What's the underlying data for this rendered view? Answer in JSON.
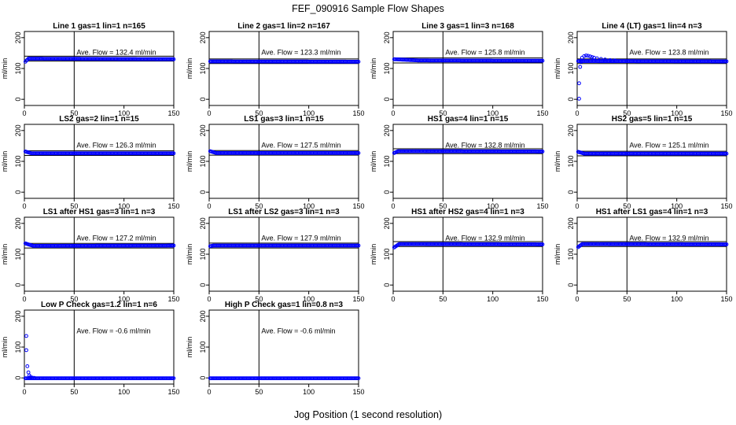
{
  "title": "FEF_090916  Sample Flow Shapes",
  "xlabel": "Jog Position (1 second resolution)",
  "colors": {
    "points": "#0000ff",
    "axes": "#000000"
  },
  "chart_data": [
    {
      "type": "scatter",
      "title": "Line 1 gas=1 lin=1 n=165",
      "ylabel": "ml/min",
      "annotation": "Ave. Flow =  132.4  ml/min",
      "xlim": [
        0,
        150
      ],
      "ylim": [
        -20,
        220
      ],
      "xticks": [
        0,
        50,
        100,
        150
      ],
      "yticks": [
        0,
        100,
        200
      ],
      "vline_x": 50,
      "hlines": [
        124,
        140
      ],
      "profile": {
        "level": 132,
        "start": 122,
        "ramp_seconds": 3,
        "tail": 130
      }
    },
    {
      "type": "scatter",
      "title": "Line 2 gas=1 lin=2 n=167",
      "ylabel": "ml/min",
      "annotation": "Ave. Flow =  123.3  ml/min",
      "xlim": [
        0,
        150
      ],
      "ylim": [
        -20,
        220
      ],
      "xticks": [
        0,
        50,
        100,
        150
      ],
      "yticks": [
        0,
        100,
        200
      ],
      "vline_x": 50,
      "hlines": [
        116,
        131
      ],
      "profile": {
        "level": 123,
        "start": 123,
        "ramp_seconds": 1,
        "tail": 122
      }
    },
    {
      "type": "scatter",
      "title": "Line 3 gas=1 lin=3 n=168",
      "ylabel": "ml/min",
      "annotation": "Ave. Flow =  125.8  ml/min",
      "xlim": [
        0,
        150
      ],
      "ylim": [
        -20,
        220
      ],
      "xticks": [
        0,
        50,
        100,
        150
      ],
      "yticks": [
        0,
        100,
        200
      ],
      "vline_x": 50,
      "hlines": [
        118,
        134
      ],
      "profile": {
        "level": 126,
        "start": 130,
        "ramp_seconds": 25,
        "tail": 125
      }
    },
    {
      "type": "scatter",
      "title": "Line 4 (LT) gas=1 lin=4 n=3",
      "ylabel": "ml/min",
      "annotation": "Ave. Flow =  123.8  ml/min",
      "xlim": [
        0,
        150
      ],
      "ylim": [
        -20,
        220
      ],
      "xticks": [
        0,
        50,
        100,
        150
      ],
      "yticks": [
        0,
        100,
        200
      ],
      "vline_x": 50,
      "hlines": [
        116,
        131
      ],
      "profile": {
        "level": 124,
        "start": 124,
        "ramp_seconds": 1,
        "tail": 123
      },
      "extra_points": [
        [
          2,
          2
        ],
        [
          2,
          52
        ],
        [
          3,
          105
        ],
        [
          4,
          122
        ],
        [
          5,
          135
        ],
        [
          7,
          140
        ],
        [
          9,
          142
        ],
        [
          11,
          141
        ],
        [
          13,
          139
        ],
        [
          15,
          137
        ],
        [
          17,
          135
        ],
        [
          20,
          133
        ],
        [
          24,
          131
        ],
        [
          28,
          129
        ],
        [
          33,
          127
        ],
        [
          38,
          126
        ]
      ]
    },
    {
      "type": "scatter",
      "title": "LS2 gas=2 lin=1 n=15",
      "ylabel": "ml/min",
      "annotation": "Ave. Flow =  126.3  ml/min",
      "xlim": [
        0,
        150
      ],
      "ylim": [
        -20,
        220
      ],
      "xticks": [
        0,
        50,
        100,
        150
      ],
      "yticks": [
        0,
        100,
        200
      ],
      "vline_x": 50,
      "hlines": [
        119,
        134
      ],
      "profile": {
        "level": 126,
        "start": 132,
        "ramp_seconds": 6,
        "tail": 126
      }
    },
    {
      "type": "scatter",
      "title": "LS1 gas=3 lin=1 n=15",
      "ylabel": "ml/min",
      "annotation": "Ave. Flow =  127.5  ml/min",
      "xlim": [
        0,
        150
      ],
      "ylim": [
        -20,
        220
      ],
      "xticks": [
        0,
        50,
        100,
        150
      ],
      "yticks": [
        0,
        100,
        200
      ],
      "vline_x": 50,
      "hlines": [
        120,
        135
      ],
      "profile": {
        "level": 127,
        "start": 133,
        "ramp_seconds": 6,
        "tail": 127
      }
    },
    {
      "type": "scatter",
      "title": "HS1 gas=4 lin=1 n=15",
      "ylabel": "ml/min",
      "annotation": "Ave. Flow =  132.8  ml/min",
      "xlim": [
        0,
        150
      ],
      "ylim": [
        -20,
        220
      ],
      "xticks": [
        0,
        50,
        100,
        150
      ],
      "yticks": [
        0,
        100,
        200
      ],
      "vline_x": 50,
      "hlines": [
        125,
        141
      ],
      "profile": {
        "level": 133,
        "start": 127,
        "ramp_seconds": 4,
        "tail": 132
      }
    },
    {
      "type": "scatter",
      "title": "HS2 gas=5 lin=1 n=15",
      "ylabel": "ml/min",
      "annotation": "Ave. Flow =  125.1  ml/min",
      "xlim": [
        0,
        150
      ],
      "ylim": [
        -20,
        220
      ],
      "xticks": [
        0,
        50,
        100,
        150
      ],
      "yticks": [
        0,
        100,
        200
      ],
      "vline_x": 50,
      "hlines": [
        118,
        133
      ],
      "profile": {
        "level": 125,
        "start": 131,
        "ramp_seconds": 6,
        "tail": 125
      }
    },
    {
      "type": "scatter",
      "title": "LS1 after HS1 gas=3 lin=1 n=3",
      "ylabel": "ml/min",
      "annotation": "Ave. Flow =  127.2  ml/min",
      "xlim": [
        0,
        150
      ],
      "ylim": [
        -20,
        220
      ],
      "xticks": [
        0,
        50,
        100,
        150
      ],
      "yticks": [
        0,
        100,
        200
      ],
      "vline_x": 50,
      "hlines": [
        120,
        135
      ],
      "profile": {
        "level": 127,
        "start": 135,
        "ramp_seconds": 8,
        "tail": 128
      }
    },
    {
      "type": "scatter",
      "title": "LS1 after LS2 gas=3 lin=1 n=3",
      "ylabel": "ml/min",
      "annotation": "Ave. Flow =  127.9  ml/min",
      "xlim": [
        0,
        150
      ],
      "ylim": [
        -20,
        220
      ],
      "xticks": [
        0,
        50,
        100,
        150
      ],
      "yticks": [
        0,
        100,
        200
      ],
      "vline_x": 50,
      "hlines": [
        120,
        136
      ],
      "profile": {
        "level": 128,
        "start": 126,
        "ramp_seconds": 3,
        "tail": 128
      }
    },
    {
      "type": "scatter",
      "title": "HS1 after HS2 gas=4 lin=1 n=3",
      "ylabel": "ml/min",
      "annotation": "Ave. Flow =  132.9  ml/min",
      "xlim": [
        0,
        150
      ],
      "ylim": [
        -20,
        220
      ],
      "xticks": [
        0,
        50,
        100,
        150
      ],
      "yticks": [
        0,
        100,
        200
      ],
      "vline_x": 50,
      "hlines": [
        125,
        141
      ],
      "profile": {
        "level": 133,
        "start": 122,
        "ramp_seconds": 5,
        "tail": 132
      }
    },
    {
      "type": "scatter",
      "title": "HS1 after LS1 gas=4 lin=1 n=3",
      "ylabel": "ml/min",
      "annotation": "Ave. Flow =  132.9  ml/min",
      "xlim": [
        0,
        150
      ],
      "ylim": [
        -20,
        220
      ],
      "xticks": [
        0,
        50,
        100,
        150
      ],
      "yticks": [
        0,
        100,
        200
      ],
      "vline_x": 50,
      "hlines": [
        125,
        141
      ],
      "profile": {
        "level": 133,
        "start": 123,
        "ramp_seconds": 4,
        "tail": 132
      }
    },
    {
      "type": "scatter",
      "title": "Low P Check gas=1.2 lin=1 n=6",
      "ylabel": "ml/min",
      "annotation": "Ave. Flow =  -0.6  ml/min",
      "xlim": [
        0,
        150
      ],
      "ylim": [
        -20,
        220
      ],
      "xticks": [
        0,
        50,
        100,
        150
      ],
      "yticks": [
        0,
        100,
        200
      ],
      "vline_x": 50,
      "hlines": [],
      "profile": {
        "level": -1,
        "start": -1,
        "ramp_seconds": 1,
        "tail": -1
      },
      "extra_points": [
        [
          2,
          136
        ],
        [
          2,
          90
        ],
        [
          3,
          38
        ],
        [
          4,
          18
        ],
        [
          5,
          8
        ],
        [
          6,
          3
        ],
        [
          8,
          1
        ],
        [
          10,
          0
        ]
      ]
    },
    {
      "type": "scatter",
      "title": "High P Check gas=1 lin=0.8 n=3",
      "ylabel": "ml/min",
      "annotation": "Ave. Flow =  -0.6  ml/min",
      "xlim": [
        0,
        150
      ],
      "ylim": [
        -20,
        220
      ],
      "xticks": [
        0,
        50,
        100,
        150
      ],
      "yticks": [
        0,
        100,
        200
      ],
      "vline_x": 50,
      "hlines": [],
      "profile": {
        "level": -1,
        "start": -1,
        "ramp_seconds": 1,
        "tail": -1
      }
    }
  ]
}
